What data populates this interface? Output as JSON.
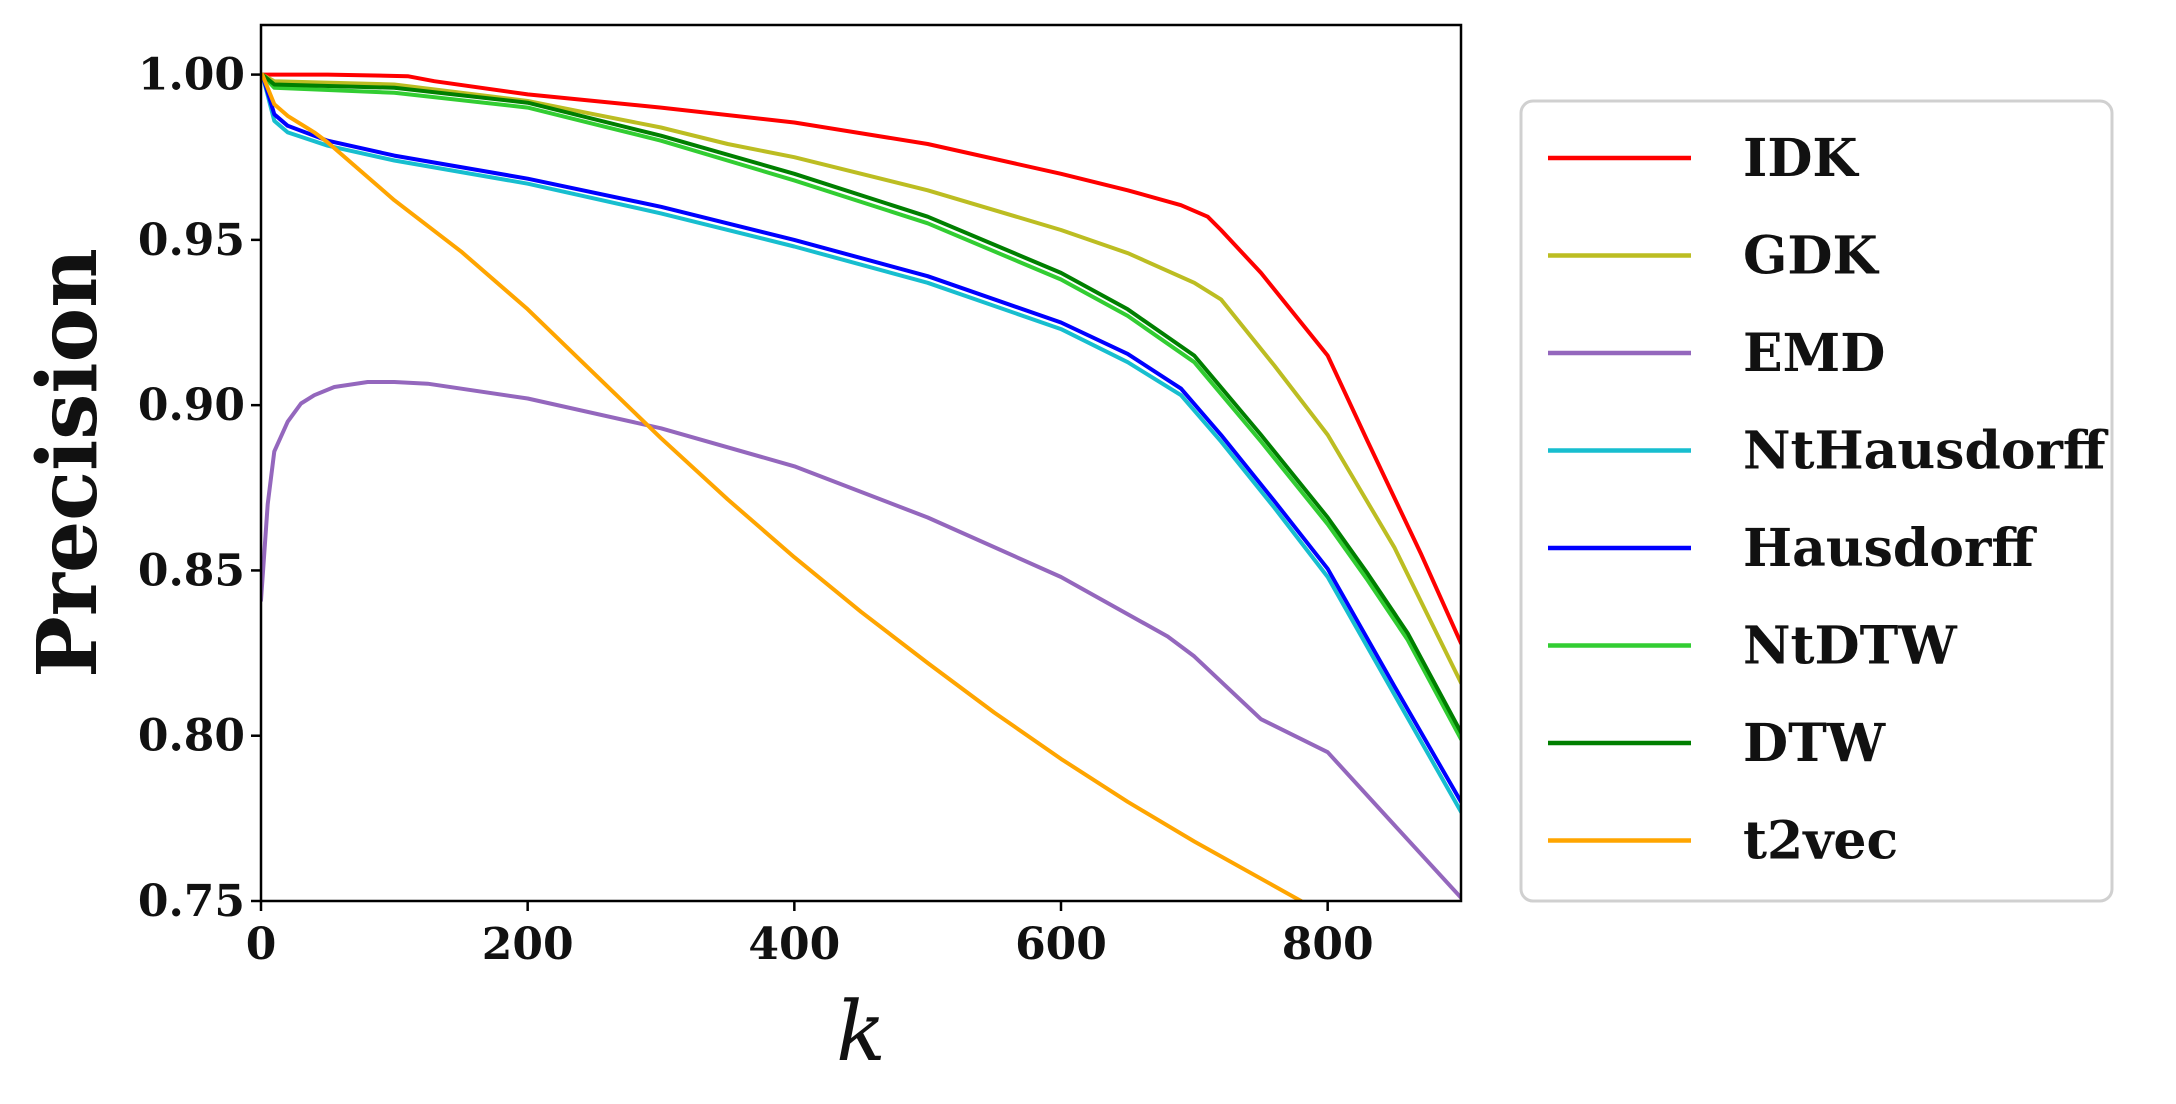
{
  "chart_data": {
    "type": "line",
    "title": "",
    "xlabel": "k",
    "ylabel": "Precision",
    "xlim": [
      0,
      900
    ],
    "ylim": [
      0.75,
      1.015
    ],
    "xticks": [
      0,
      200,
      400,
      600,
      800
    ],
    "xtick_labels": [
      "0",
      "200",
      "400",
      "600",
      "800"
    ],
    "yticks": [
      0.75,
      0.8,
      0.85,
      0.9,
      0.95,
      1.0
    ],
    "ytick_labels": [
      "0.75",
      "0.80",
      "0.85",
      "0.90",
      "0.95",
      "1.00"
    ],
    "grid": false,
    "legend_position": "right-outside",
    "series": [
      {
        "name": "IDK",
        "color": "#ff0000",
        "x": [
          1,
          50,
          110,
          130,
          200,
          300,
          400,
          500,
          600,
          650,
          690,
          710,
          720,
          750,
          800,
          830,
          870,
          900
        ],
        "y": [
          1.0,
          1.0,
          0.9995,
          0.998,
          0.994,
          0.99,
          0.9855,
          0.979,
          0.97,
          0.965,
          0.9605,
          0.957,
          0.953,
          0.94,
          0.915,
          0.889,
          0.855,
          0.828
        ]
      },
      {
        "name": "GDK",
        "color": "#bcbd22",
        "x": [
          1,
          10,
          100,
          200,
          250,
          300,
          350,
          400,
          500,
          600,
          650,
          700,
          720,
          760,
          800,
          850,
          900
        ],
        "y": [
          1.0,
          0.998,
          0.997,
          0.992,
          0.988,
          0.984,
          0.979,
          0.975,
          0.965,
          0.953,
          0.946,
          0.937,
          0.932,
          0.912,
          0.891,
          0.857,
          0.816
        ]
      },
      {
        "name": "EMD",
        "color": "#9467bd",
        "x": [
          0,
          5,
          10,
          20,
          30,
          40,
          55,
          80,
          100,
          125,
          200,
          300,
          400,
          500,
          600,
          680,
          700,
          750,
          800,
          850,
          900
        ],
        "y": [
          0.841,
          0.87,
          0.886,
          0.895,
          0.9005,
          0.903,
          0.9055,
          0.907,
          0.907,
          0.9065,
          0.902,
          0.893,
          0.8815,
          0.866,
          0.848,
          0.83,
          0.824,
          0.805,
          0.795,
          0.773,
          0.751
        ]
      },
      {
        "name": "NtHausdorff",
        "color": "#17becf",
        "x": [
          1,
          10,
          20,
          50,
          100,
          200,
          300,
          400,
          500,
          600,
          650,
          690,
          720,
          760,
          800,
          850,
          900
        ],
        "y": [
          1.0,
          0.986,
          0.9825,
          0.9785,
          0.974,
          0.967,
          0.958,
          0.948,
          0.937,
          0.923,
          0.913,
          0.903,
          0.889,
          0.869,
          0.848,
          0.8125,
          0.777
        ]
      },
      {
        "name": "Hausdorff",
        "color": "#0000ff",
        "x": [
          1,
          10,
          20,
          50,
          100,
          200,
          300,
          400,
          500,
          600,
          650,
          690,
          720,
          760,
          800,
          850,
          900
        ],
        "y": [
          1.0,
          0.988,
          0.9845,
          0.98,
          0.9755,
          0.9685,
          0.96,
          0.95,
          0.939,
          0.925,
          0.9155,
          0.905,
          0.891,
          0.871,
          0.8505,
          0.815,
          0.78
        ]
      },
      {
        "name": "NtDTW",
        "color": "#32cd32",
        "x": [
          1,
          10,
          100,
          200,
          300,
          400,
          500,
          600,
          650,
          700,
          750,
          800,
          830,
          860,
          900
        ],
        "y": [
          1.0,
          0.996,
          0.9945,
          0.99,
          0.98,
          0.968,
          0.955,
          0.938,
          0.927,
          0.913,
          0.889,
          0.864,
          0.847,
          0.829,
          0.799
        ]
      },
      {
        "name": "DTW",
        "color": "#007f00",
        "x": [
          1,
          10,
          100,
          200,
          300,
          400,
          500,
          600,
          650,
          700,
          750,
          800,
          830,
          860,
          900
        ],
        "y": [
          1.0,
          0.997,
          0.996,
          0.9915,
          0.9815,
          0.97,
          0.957,
          0.94,
          0.929,
          0.915,
          0.891,
          0.866,
          0.849,
          0.831,
          0.801
        ]
      },
      {
        "name": "t2vec",
        "color": "#ffa500",
        "x": [
          1,
          10,
          20,
          40,
          50,
          100,
          150,
          200,
          250,
          300,
          350,
          400,
          450,
          500,
          550,
          600,
          650,
          700,
          780
        ],
        "y": [
          1.0,
          0.991,
          0.9875,
          0.9825,
          0.9795,
          0.962,
          0.9465,
          0.929,
          0.9095,
          0.89,
          0.8715,
          0.854,
          0.8375,
          0.822,
          0.807,
          0.793,
          0.78,
          0.768,
          0.75
        ]
      }
    ]
  }
}
